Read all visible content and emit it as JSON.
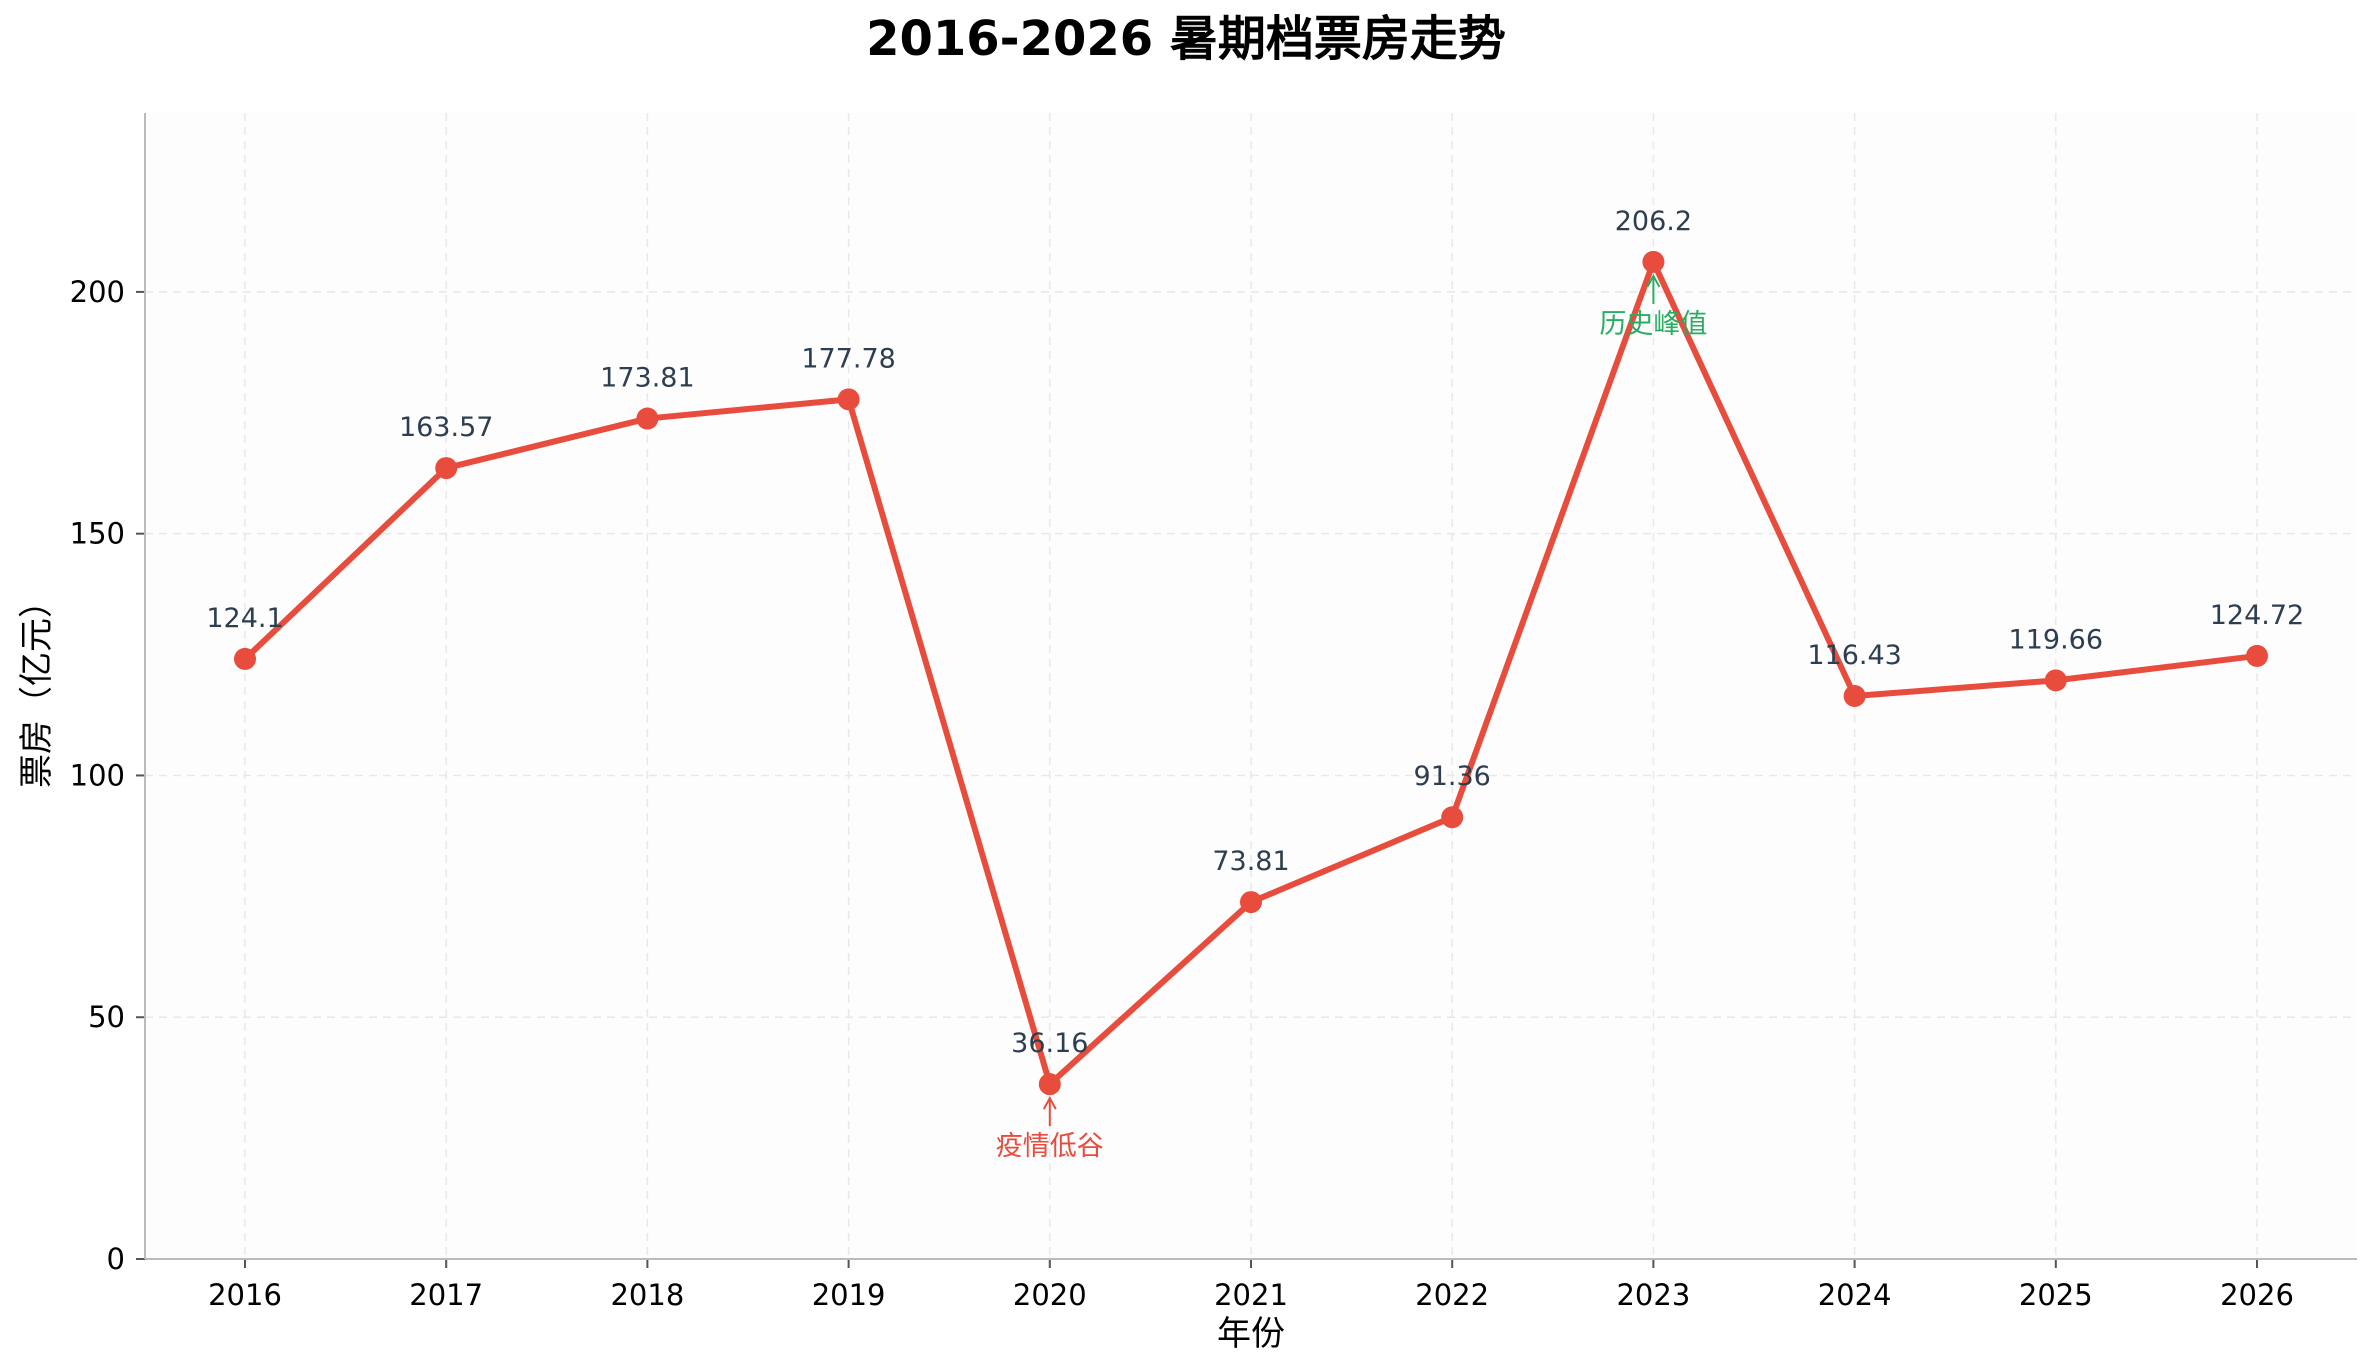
{
  "chart_data": {
    "type": "line",
    "title": "2016-2026 暑期档票房走势",
    "xlabel": "年份",
    "ylabel": "票房（亿元）",
    "categories": [
      "2016",
      "2017",
      "2018",
      "2019",
      "2020",
      "2021",
      "2022",
      "2023",
      "2024",
      "2025",
      "2026"
    ],
    "series": [
      {
        "values": [
          124.1,
          163.57,
          173.81,
          177.78,
          36.16,
          73.81,
          91.36,
          206.2,
          116.43,
          119.66,
          124.72
        ],
        "labels": [
          "124.1",
          "163.57",
          "173.81",
          "177.78",
          "36.16",
          "73.81",
          "91.36",
          "206.2",
          "116.43",
          "119.66",
          "124.72"
        ],
        "color": "#e74c3c"
      }
    ],
    "ylim": [
      0,
      237
    ],
    "yticks": [
      0,
      50,
      100,
      150,
      200
    ],
    "ytick_labels": [
      "0",
      "50",
      "100",
      "150",
      "200"
    ],
    "grid": true,
    "annotations": [
      {
        "text": "疫情低谷",
        "index": 4,
        "color": "#e74c3c"
      },
      {
        "text": "历史峰值",
        "index": 7,
        "color": "#27ae60"
      }
    ],
    "colors": {
      "line": "#e74c3c",
      "plot_background": "#fdfdfd",
      "grid": "#e8e8e8",
      "axis": "#bbbbbb",
      "data_label": "#2c3e50"
    }
  }
}
